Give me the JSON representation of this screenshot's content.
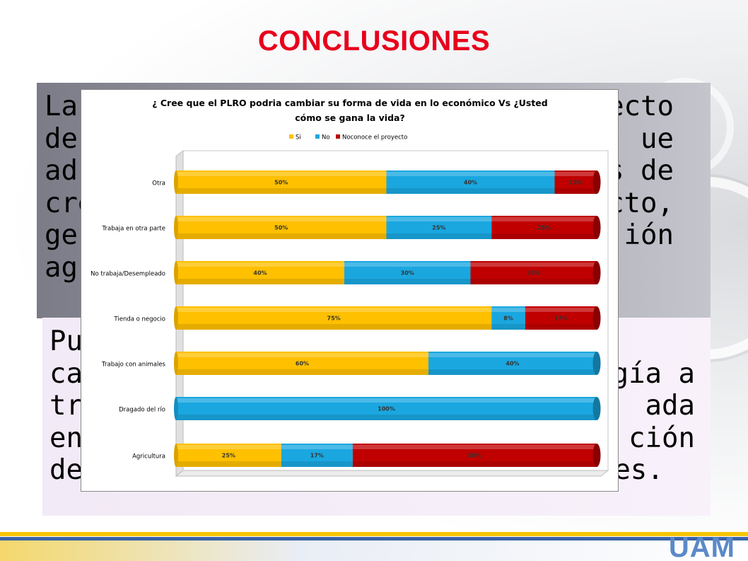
{
  "slide": {
    "title": "CONCLUSIONES",
    "logo": "UAM",
    "text_block_1_lines": [
      "La",
      "de",
      "ad",
      "cre",
      "ge",
      "ag"
    ],
    "text_block_1_right_fragments": [
      "ecto",
      "ue",
      "s de",
      "cto,",
      "ión"
    ],
    "text_block_2_lines": [
      "Pu",
      "ca",
      "tra",
      "en",
      "de las especificidades territoriales."
    ],
    "text_block_2_right_fragments": [
      "ogía a",
      "ada",
      "ción"
    ]
  },
  "colors": {
    "title": "#e8001c",
    "si": "#ffc000",
    "no": "#1aa7e0",
    "noconoce": "#c00000"
  },
  "chart_data": {
    "type": "bar",
    "orientation": "horizontal",
    "stacked": "percent",
    "title_lines": [
      "¿ Cree que el PLRO podria cambiar su forma de vida en lo económico Vs ¿Usted",
      "cómo se gana la vida?"
    ],
    "legend": [
      "Si",
      "No",
      "Noconoce el proyecto"
    ],
    "legend_position": "top",
    "categories": [
      "Otra",
      "Trabaja en otra parte",
      "No trabaja/Desempleado",
      "Tienda o negocio",
      "Trabajo con animales",
      "Dragado del río",
      "Agricultura"
    ],
    "series": [
      {
        "name": "Si",
        "values": [
          50,
          50,
          40,
          75,
          60,
          0,
          25
        ],
        "labels": [
          "50%",
          "50%",
          "40%",
          "75%",
          "60%",
          "",
          "25%"
        ]
      },
      {
        "name": "No",
        "values": [
          40,
          25,
          30,
          8,
          40,
          100,
          17
        ],
        "labels": [
          "40%",
          "25%",
          "30%",
          "8%",
          "40%",
          "100%",
          "17%"
        ]
      },
      {
        "name": "Noconoce el proyecto",
        "values": [
          10,
          25,
          30,
          17,
          0,
          0,
          58
        ],
        "labels": [
          "10%",
          "25%",
          "30%",
          "17%",
          "",
          "",
          "58%"
        ]
      }
    ],
    "xlim": [
      0,
      100
    ],
    "grid": false
  }
}
